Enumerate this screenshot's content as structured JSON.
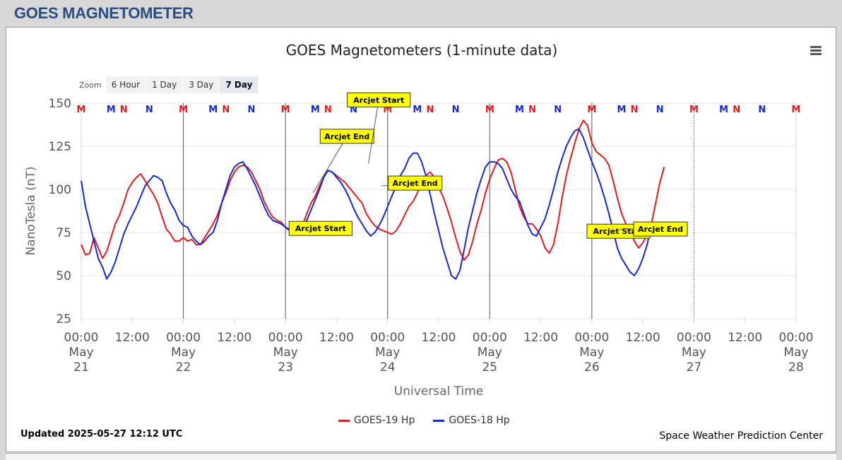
{
  "header": {
    "title": "GOES MAGNETOMETER"
  },
  "chart_title": "GOES Magnetometers (1-minute data)",
  "zoom": {
    "label": "Zoom",
    "buttons": [
      "6 Hour",
      "1 Day",
      "3 Day",
      "7 Day"
    ],
    "active": "7 Day"
  },
  "footer": {
    "updated": "Updated 2025-05-27 12:12 UTC",
    "credit": "Space Weather Prediction Center"
  },
  "colors": {
    "goes19": "#e31a1c",
    "goes18": "#1428d6",
    "arcjet_fill": "#ffff00"
  },
  "chart_data": {
    "type": "line",
    "title": "GOES Magnetometers (1-minute data)",
    "xlabel": "Universal Time",
    "ylabel": "NanoTesla (nT)",
    "ylim": [
      25,
      150
    ],
    "yticks": [
      25,
      50,
      75,
      100,
      125,
      150
    ],
    "x_unit": "hours since 2025-05-21 00:00 UTC",
    "xlim": [
      0,
      168
    ],
    "xticks": [
      {
        "x": 0,
        "label": [
          "00:00",
          "May",
          "21"
        ]
      },
      {
        "x": 12,
        "label": [
          "12:00"
        ]
      },
      {
        "x": 24,
        "label": [
          "00:00",
          "May",
          "22"
        ]
      },
      {
        "x": 36,
        "label": [
          "12:00"
        ]
      },
      {
        "x": 48,
        "label": [
          "00:00",
          "May",
          "23"
        ]
      },
      {
        "x": 60,
        "label": [
          "12:00"
        ]
      },
      {
        "x": 72,
        "label": [
          "00:00",
          "May",
          "24"
        ]
      },
      {
        "x": 84,
        "label": [
          "12:00"
        ]
      },
      {
        "x": 96,
        "label": [
          "00:00",
          "May",
          "25"
        ]
      },
      {
        "x": 108,
        "label": [
          "12:00"
        ]
      },
      {
        "x": 120,
        "label": [
          "00:00",
          "May",
          "26"
        ]
      },
      {
        "x": 132,
        "label": [
          "12:00"
        ]
      },
      {
        "x": 144,
        "label": [
          "00:00",
          "May",
          "27"
        ]
      },
      {
        "x": 156,
        "label": [
          "12:00"
        ]
      },
      {
        "x": 168,
        "label": [
          "00:00",
          "May",
          "28"
        ]
      }
    ],
    "day_lines": [
      24,
      48,
      72,
      96,
      120
    ],
    "current_time_line": 144,
    "series": [
      {
        "name": "GOES-19 Hp",
        "color": "#e31a1c",
        "points": [
          [
            0,
            68
          ],
          [
            1,
            62
          ],
          [
            2,
            63
          ],
          [
            3,
            72
          ],
          [
            4,
            66
          ],
          [
            5,
            60
          ],
          [
            6,
            64
          ],
          [
            7,
            72
          ],
          [
            8,
            80
          ],
          [
            9,
            85
          ],
          [
            10,
            92
          ],
          [
            11,
            100
          ],
          [
            12,
            104
          ],
          [
            13,
            107
          ],
          [
            14,
            109
          ],
          [
            15,
            105
          ],
          [
            16,
            101
          ],
          [
            17,
            97
          ],
          [
            18,
            92
          ],
          [
            19,
            84
          ],
          [
            20,
            77
          ],
          [
            21,
            74
          ],
          [
            22,
            70
          ],
          [
            23,
            70
          ],
          [
            24,
            72
          ],
          [
            25,
            70
          ],
          [
            26,
            71
          ],
          [
            27,
            68
          ],
          [
            28,
            68
          ],
          [
            29,
            72
          ],
          [
            30,
            76
          ],
          [
            31,
            80
          ],
          [
            32,
            85
          ],
          [
            33,
            92
          ],
          [
            34,
            98
          ],
          [
            35,
            105
          ],
          [
            36,
            110
          ],
          [
            37,
            113
          ],
          [
            38,
            114
          ],
          [
            39,
            113
          ],
          [
            40,
            110
          ],
          [
            41,
            105
          ],
          [
            42,
            100
          ],
          [
            43,
            93
          ],
          [
            44,
            88
          ],
          [
            45,
            84
          ],
          [
            46,
            82
          ],
          [
            47,
            81
          ],
          [
            48,
            78
          ],
          [
            49,
            77
          ],
          [
            50,
            74
          ],
          [
            51,
            74
          ],
          [
            52,
            79
          ],
          [
            53,
            86
          ],
          [
            54,
            92
          ],
          [
            55,
            96
          ],
          [
            56,
            102
          ],
          [
            57,
            107
          ],
          [
            58,
            111
          ],
          [
            59,
            110
          ],
          [
            60,
            108
          ],
          [
            61,
            106
          ],
          [
            62,
            104
          ],
          [
            63,
            101
          ],
          [
            64,
            98
          ],
          [
            65,
            95
          ],
          [
            66,
            92
          ],
          [
            67,
            86
          ],
          [
            68,
            82
          ],
          [
            69,
            79
          ],
          [
            70,
            77
          ],
          [
            71,
            76
          ],
          [
            72,
            75
          ],
          [
            73,
            74
          ],
          [
            74,
            76
          ],
          [
            75,
            80
          ],
          [
            76,
            85
          ],
          [
            77,
            90
          ],
          [
            78,
            93
          ],
          [
            79,
            98
          ],
          [
            80,
            104
          ],
          [
            81,
            108
          ],
          [
            82,
            110
          ],
          [
            83,
            107
          ],
          [
            84,
            101
          ],
          [
            85,
            96
          ],
          [
            86,
            89
          ],
          [
            87,
            81
          ],
          [
            88,
            72
          ],
          [
            89,
            64
          ],
          [
            90,
            59
          ],
          [
            91,
            62
          ],
          [
            92,
            70
          ],
          [
            93,
            80
          ],
          [
            94,
            88
          ],
          [
            95,
            98
          ],
          [
            96,
            106
          ],
          [
            97,
            112
          ],
          [
            98,
            117
          ],
          [
            99,
            118
          ],
          [
            100,
            116
          ],
          [
            101,
            110
          ],
          [
            102,
            100
          ],
          [
            103,
            90
          ],
          [
            104,
            84
          ],
          [
            105,
            80
          ],
          [
            106,
            80
          ],
          [
            107,
            77
          ],
          [
            108,
            73
          ],
          [
            109,
            66
          ],
          [
            110,
            63
          ],
          [
            111,
            68
          ],
          [
            112,
            80
          ],
          [
            113,
            95
          ],
          [
            114,
            108
          ],
          [
            115,
            118
          ],
          [
            116,
            127
          ],
          [
            117,
            135
          ],
          [
            118,
            140
          ],
          [
            119,
            137
          ],
          [
            120,
            127
          ],
          [
            121,
            122
          ],
          [
            122,
            120
          ],
          [
            123,
            118
          ],
          [
            124,
            114
          ],
          [
            125,
            105
          ],
          [
            126,
            95
          ],
          [
            127,
            86
          ],
          [
            128,
            80
          ],
          [
            129,
            75
          ],
          [
            130,
            70
          ],
          [
            131,
            66
          ],
          [
            132,
            69
          ],
          [
            133,
            74
          ],
          [
            134,
            80
          ],
          [
            135,
            92
          ],
          [
            136,
            104
          ],
          [
            137,
            113
          ]
        ]
      },
      {
        "name": "GOES-18 Hp",
        "color": "#1428d6",
        "points": [
          [
            0,
            105
          ],
          [
            1,
            90
          ],
          [
            2,
            80
          ],
          [
            3,
            70
          ],
          [
            4,
            60
          ],
          [
            5,
            55
          ],
          [
            6,
            48
          ],
          [
            7,
            52
          ],
          [
            8,
            58
          ],
          [
            9,
            66
          ],
          [
            10,
            74
          ],
          [
            11,
            80
          ],
          [
            12,
            85
          ],
          [
            13,
            90
          ],
          [
            14,
            96
          ],
          [
            15,
            102
          ],
          [
            16,
            105
          ],
          [
            17,
            108
          ],
          [
            18,
            107
          ],
          [
            19,
            105
          ],
          [
            20,
            98
          ],
          [
            21,
            92
          ],
          [
            22,
            88
          ],
          [
            23,
            82
          ],
          [
            24,
            79
          ],
          [
            25,
            78
          ],
          [
            26,
            73
          ],
          [
            27,
            70
          ],
          [
            28,
            68
          ],
          [
            29,
            70
          ],
          [
            30,
            73
          ],
          [
            31,
            75
          ],
          [
            32,
            82
          ],
          [
            33,
            92
          ],
          [
            34,
            100
          ],
          [
            35,
            108
          ],
          [
            36,
            113
          ],
          [
            37,
            115
          ],
          [
            38,
            116
          ],
          [
            39,
            112
          ],
          [
            40,
            107
          ],
          [
            41,
            102
          ],
          [
            42,
            96
          ],
          [
            43,
            90
          ],
          [
            44,
            85
          ],
          [
            45,
            82
          ],
          [
            46,
            81
          ],
          [
            47,
            80
          ],
          [
            48,
            78
          ],
          [
            49,
            76
          ],
          [
            50,
            75
          ],
          [
            51,
            74
          ],
          [
            52,
            76
          ],
          [
            53,
            82
          ],
          [
            54,
            88
          ],
          [
            55,
            94
          ],
          [
            56,
            100
          ],
          [
            57,
            107
          ],
          [
            58,
            111
          ],
          [
            59,
            110
          ],
          [
            60,
            107
          ],
          [
            61,
            104
          ],
          [
            62,
            100
          ],
          [
            63,
            95
          ],
          [
            64,
            89
          ],
          [
            65,
            84
          ],
          [
            66,
            80
          ],
          [
            67,
            76
          ],
          [
            68,
            73
          ],
          [
            69,
            75
          ],
          [
            70,
            79
          ],
          [
            71,
            84
          ],
          [
            72,
            90
          ],
          [
            73,
            96
          ],
          [
            74,
            102
          ],
          [
            75,
            108
          ],
          [
            76,
            112
          ],
          [
            77,
            118
          ],
          [
            78,
            121
          ],
          [
            79,
            121
          ],
          [
            80,
            116
          ],
          [
            81,
            108
          ],
          [
            82,
            97
          ],
          [
            83,
            86
          ],
          [
            84,
            76
          ],
          [
            85,
            66
          ],
          [
            86,
            58
          ],
          [
            87,
            50
          ],
          [
            88,
            48
          ],
          [
            89,
            53
          ],
          [
            90,
            65
          ],
          [
            91,
            78
          ],
          [
            92,
            88
          ],
          [
            93,
            98
          ],
          [
            94,
            106
          ],
          [
            95,
            113
          ],
          [
            96,
            116
          ],
          [
            97,
            116
          ],
          [
            98,
            115
          ],
          [
            99,
            112
          ],
          [
            100,
            106
          ],
          [
            101,
            100
          ],
          [
            102,
            96
          ],
          [
            103,
            93
          ],
          [
            104,
            86
          ],
          [
            105,
            79
          ],
          [
            106,
            74
          ],
          [
            107,
            73
          ],
          [
            108,
            78
          ],
          [
            109,
            83
          ],
          [
            110,
            91
          ],
          [
            111,
            100
          ],
          [
            112,
            110
          ],
          [
            113,
            118
          ],
          [
            114,
            125
          ],
          [
            115,
            130
          ],
          [
            116,
            134
          ],
          [
            117,
            135
          ],
          [
            118,
            130
          ],
          [
            119,
            123
          ],
          [
            120,
            116
          ],
          [
            121,
            110
          ],
          [
            122,
            103
          ],
          [
            123,
            95
          ],
          [
            124,
            86
          ],
          [
            125,
            76
          ],
          [
            126,
            66
          ],
          [
            127,
            60
          ],
          [
            128,
            56
          ],
          [
            129,
            52
          ],
          [
            130,
            50
          ],
          [
            131,
            54
          ],
          [
            132,
            60
          ],
          [
            133,
            68
          ],
          [
            134,
            80
          ],
          [
            135,
            80
          ],
          [
            136,
            73
          ]
        ]
      }
    ],
    "markers": [
      {
        "label": "M",
        "color": "#e31a1c",
        "x": [
          0,
          24,
          48,
          72,
          96,
          120,
          144,
          168
        ]
      },
      {
        "label": "N",
        "color": "#e31a1c",
        "x": [
          10,
          34,
          58,
          82,
          106,
          130,
          154
        ]
      },
      {
        "label": "M",
        "color": "#1428d6",
        "x": [
          7,
          31,
          55,
          79,
          103,
          127,
          151
        ]
      },
      {
        "label": "N",
        "color": "#1428d6",
        "x": [
          16,
          40,
          64,
          88,
          112,
          136,
          160
        ]
      }
    ],
    "annotations": [
      {
        "text": "Arcjet Start",
        "x": 53.5,
        "y": 79
      },
      {
        "text": "Arcjet End",
        "x": 54.5,
        "y": 98
      },
      {
        "text": "Arcjet Start",
        "x": 67.5,
        "y": 115
      },
      {
        "text": "Arcjet End",
        "x": 70.5,
        "y": 102
      },
      {
        "text": "Arcjet Start",
        "x": 125.5,
        "y": 79
      },
      {
        "text": "Arcjet End",
        "x": 126.5,
        "y": 77
      }
    ],
    "legend": [
      "GOES-19 Hp",
      "GOES-18 Hp"
    ],
    "legend_position": "bottom-center"
  }
}
